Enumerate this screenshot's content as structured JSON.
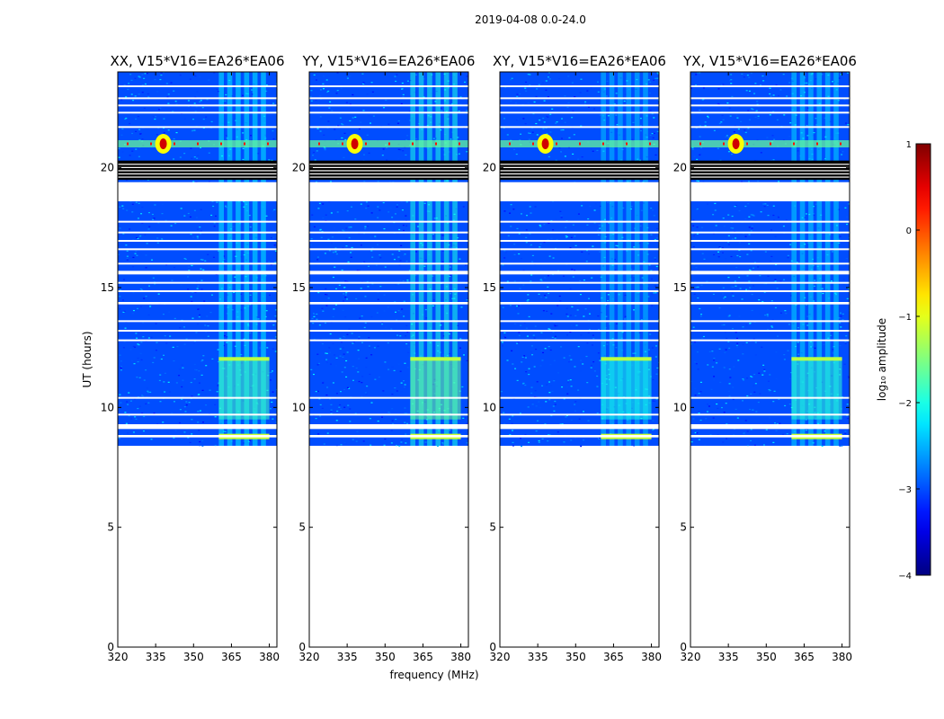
{
  "chart_data": {
    "type": "heatmap",
    "suptitle": "2019-04-08 0.0-24.0",
    "xlabel": "frequency (MHz)",
    "ylabel": "UT (hours)",
    "xlim": [
      320,
      383
    ],
    "ylim": [
      0,
      24
    ],
    "xticks": [
      "320",
      "335",
      "350",
      "365",
      "380"
    ],
    "yticks": [
      "0",
      "5",
      "10",
      "15",
      "20"
    ],
    "colormap": "jet",
    "colorbar": {
      "label": "log₁₀ amplitude",
      "range": [
        -4,
        1
      ],
      "ticks": [
        "1",
        "0",
        "−1",
        "−2",
        "−3",
        "−4"
      ]
    },
    "panels": [
      {
        "title": "XX, V15*V16=EA26*EA06",
        "rfi_band_mhz": [
          360,
          380
        ],
        "rfi_level": -1.8
      },
      {
        "title": "YY, V15*V16=EA26*EA06",
        "rfi_band_mhz": [
          360,
          380
        ],
        "rfi_level": -1.6
      },
      {
        "title": "XY, V15*V16=EA26*EA06",
        "rfi_band_mhz": [
          360,
          380
        ],
        "rfi_level": -2.0
      },
      {
        "title": "YX, V15*V16=EA26*EA06",
        "rfi_band_mhz": [
          360,
          380
        ],
        "rfi_level": -1.9
      }
    ],
    "data_start_ut": 8.4,
    "data_end_ut": 24.0,
    "background_level": -3.0,
    "flagged_gaps_ut": [
      [
        18.6,
        19.4
      ],
      [
        15.55,
        15.7
      ],
      [
        14.3,
        14.4
      ],
      [
        9.1,
        9.3
      ],
      [
        8.75,
        8.85
      ]
    ],
    "blank_rows_ut": [
      23.4,
      22.9,
      22.6,
      22.3,
      21.7,
      17.75,
      17.3,
      16.95,
      16.6,
      16.0,
      15.2,
      14.85,
      13.6,
      13.2,
      12.8,
      10.4,
      9.7
    ],
    "black_band_ut": [
      19.5,
      20.3
    ],
    "bright_rfi_ut": 21.0,
    "bright_rfi_mhz": 338,
    "bright_rfi_level": 0.6
  }
}
